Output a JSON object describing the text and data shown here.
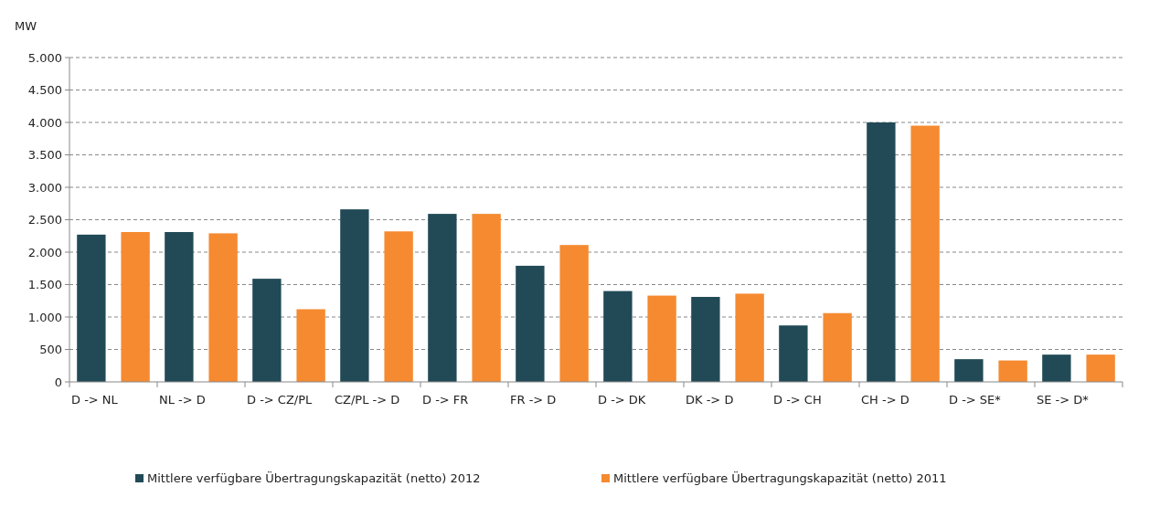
{
  "chart_data": {
    "type": "bar",
    "ylabel": "MW",
    "categories": [
      "D -> NL",
      "NL -> D",
      "D -> CZ/PL",
      "CZ/PL -> D",
      "D -> FR",
      "FR -> D",
      "D -> DK",
      "DK -> D",
      "D -> CH",
      "CH -> D",
      "D -> SE*",
      "SE -> D*"
    ],
    "series": [
      {
        "name": "Mittlere verfügbare Übertragungskapazität (netto) 2012",
        "color": "#214a56",
        "values": [
          2270,
          2310,
          1590,
          2660,
          2590,
          1790,
          1400,
          1310,
          870,
          4000,
          350,
          420
        ]
      },
      {
        "name": "Mittlere verfügbare Übertragungskapazität (netto) 2011",
        "color": "#f58a30",
        "values": [
          2310,
          2290,
          1120,
          2320,
          2590,
          2110,
          1330,
          1360,
          1060,
          3950,
          330,
          420
        ]
      }
    ],
    "ylim": [
      0,
      5000
    ],
    "yticks": [
      0,
      500,
      {
        "value": 1000,
        "label": "1.000"
      },
      {
        "value": 1500,
        "label": "1.500"
      },
      {
        "value": 2000,
        "label": "2.000"
      },
      {
        "value": 2500,
        "label": "2.500"
      },
      {
        "value": 3000,
        "label": "3.000"
      },
      {
        "value": 3500,
        "label": "3.500"
      },
      {
        "value": 4000,
        "label": "4.000"
      },
      {
        "value": 4500,
        "label": "4.500"
      },
      {
        "value": 5000,
        "label": "5.000"
      }
    ],
    "grid": "y",
    "legend": "bottom"
  }
}
